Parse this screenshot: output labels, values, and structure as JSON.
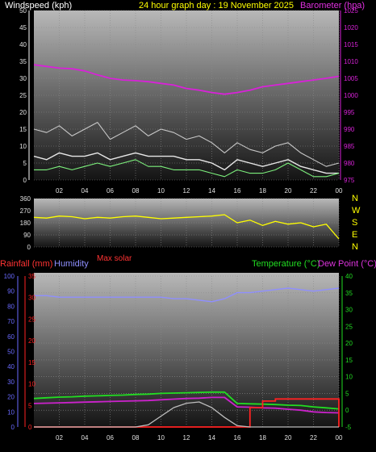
{
  "header": {
    "left_title": "Windspeed (kph)",
    "center_title": "24 hour graph day : 19 November 2025",
    "right_title": "Barometer (hpa)"
  },
  "colors": {
    "background": "#000000",
    "wind_avg": "#e6e6e6",
    "wind_gust": "#c8c8c8",
    "wind_low": "#7cf07c",
    "barometer": "#d822d8",
    "direction": "#ffff00",
    "rainfall": "#ff2222",
    "humidity": "#8f8fff",
    "solar": "#bdbdbd",
    "temperature": "#22dd22",
    "dewpoint": "#cc22cc",
    "axis_left_blue": "#6a6aff"
  },
  "time_ticks": [
    "02",
    "04",
    "06",
    "08",
    "10",
    "12",
    "14",
    "16",
    "18",
    "20",
    "22",
    "00"
  ],
  "chart_data": [
    {
      "id": "wind-barometer",
      "type": "line",
      "ylabel": "Windspeed (kph)",
      "y2label": "Barometer (hpa)",
      "ylim": [
        0,
        50
      ],
      "y2lim": [
        975,
        1025
      ],
      "y_ticks": [
        "0",
        "5",
        "10",
        "15",
        "20",
        "25",
        "30",
        "35",
        "40",
        "45",
        "50"
      ],
      "y2_ticks": [
        "975",
        "980",
        "985",
        "990",
        "995",
        "1000",
        "1005",
        "1010",
        "1015",
        "1020",
        "1025"
      ],
      "x_hours": [
        0,
        1,
        2,
        3,
        4,
        5,
        6,
        7,
        8,
        9,
        10,
        11,
        12,
        13,
        14,
        15,
        16,
        17,
        18,
        19,
        20,
        21,
        22,
        23,
        24
      ],
      "series": [
        {
          "key": "wind_gust",
          "values": [
            15,
            14,
            16,
            13,
            15,
            17,
            12,
            14,
            16,
            13,
            15,
            14,
            12,
            13,
            11,
            8,
            11,
            9,
            8,
            10,
            11,
            8,
            6,
            4,
            5
          ]
        },
        {
          "key": "wind_avg",
          "values": [
            7,
            6,
            8,
            7,
            7,
            8,
            6,
            7,
            8,
            7,
            7,
            7,
            6,
            6,
            5,
            3,
            6,
            5,
            4,
            5,
            6,
            4,
            3,
            2,
            2
          ]
        },
        {
          "key": "wind_low",
          "values": [
            3,
            3,
            4,
            3,
            4,
            5,
            4,
            5,
            6,
            4,
            4,
            3,
            3,
            3,
            2,
            1,
            3,
            2,
            2,
            3,
            5,
            3,
            1,
            1,
            2
          ]
        },
        {
          "key": "barometer",
          "values": [
            1009,
            1008.5,
            1008,
            1007.8,
            1007.2,
            1006,
            1005,
            1004.5,
            1004.3,
            1004,
            1003.5,
            1003,
            1002,
            1001.5,
            1000.8,
            1000.3,
            1000.8,
            1001.5,
            1002.5,
            1003,
            1003.5,
            1004,
            1004.5,
            1005,
            1005.6
          ]
        }
      ]
    },
    {
      "id": "wind-direction",
      "type": "line",
      "ylim": [
        0,
        360
      ],
      "y_ticks": [
        "0",
        "90",
        "180",
        "270",
        "360"
      ],
      "compass_labels": [
        "N",
        "W",
        "S",
        "E",
        "N"
      ],
      "x_hours": [
        0,
        1,
        2,
        3,
        4,
        5,
        6,
        7,
        8,
        9,
        10,
        11,
        12,
        13,
        14,
        15,
        16,
        17,
        18,
        19,
        20,
        21,
        22,
        23,
        24
      ],
      "series": [
        {
          "key": "direction",
          "values": [
            220,
            215,
            230,
            225,
            210,
            220,
            215,
            225,
            230,
            220,
            210,
            215,
            220,
            225,
            230,
            240,
            180,
            200,
            160,
            190,
            170,
            180,
            150,
            170,
            60
          ]
        }
      ]
    },
    {
      "id": "rain-humidity-temp",
      "type": "line",
      "left_titles": [
        "Rainfall (mm)",
        "Humidity"
      ],
      "solar_title": "Max solar",
      "right_titles": [
        "Temperature (°C)",
        "Dew Point (°C)"
      ],
      "humidity_ticks": [
        "0",
        "10",
        "20",
        "30",
        "40",
        "50",
        "60",
        "70",
        "80",
        "90",
        "100"
      ],
      "rain_ticks": [
        "0",
        "5",
        "10",
        "15",
        "20",
        "25",
        "30",
        "35"
      ],
      "temp_ticks": [
        "-5",
        "0",
        "5",
        "10",
        "15",
        "20",
        "25",
        "30",
        "35",
        "40"
      ],
      "ylim_humidity": [
        0,
        100
      ],
      "ylim_rain": [
        0,
        35
      ],
      "ylim_temp": [
        -5,
        40
      ],
      "x_hours": [
        0,
        1,
        2,
        3,
        4,
        5,
        6,
        7,
        8,
        9,
        10,
        11,
        12,
        13,
        14,
        15,
        16,
        17,
        18,
        19,
        20,
        21,
        22,
        23,
        24
      ],
      "series": [
        {
          "key": "humidity",
          "values": [
            87,
            87,
            86,
            86,
            86,
            86,
            86,
            86,
            86,
            86,
            86,
            85,
            85,
            84,
            83,
            85,
            89,
            89,
            90,
            91,
            92,
            91,
            90,
            91,
            92
          ]
        },
        {
          "key": "temperature",
          "values": [
            3.5,
            3.7,
            3.9,
            4,
            4.2,
            4.3,
            4.4,
            4.5,
            4.7,
            4.8,
            5,
            5.1,
            5.2,
            5.3,
            5.4,
            5.4,
            2,
            1.9,
            1.8,
            1.7,
            1.5,
            1.4,
            1,
            0.7,
            0.4
          ]
        },
        {
          "key": "dewpoint",
          "values": [
            2,
            2.1,
            2.2,
            2.3,
            2.4,
            2.5,
            2.6,
            2.7,
            2.8,
            2.9,
            3.1,
            3.3,
            3.5,
            3.6,
            3.8,
            3.8,
            1,
            0.9,
            0.7,
            0.6,
            0.3,
            0,
            -0.5,
            -0.7,
            -0.8
          ]
        },
        {
          "key": "rainfall",
          "values": [
            0,
            0,
            0,
            0,
            0,
            0,
            0,
            0,
            0,
            0,
            0,
            0,
            0,
            0,
            0,
            0,
            0,
            4.5,
            6,
            6.5,
            6.5,
            6.5,
            6.5,
            6.5,
            0
          ]
        },
        {
          "key": "solar",
          "values": [
            0,
            0,
            0,
            0,
            0,
            0,
            0,
            0,
            0,
            0.5,
            2.5,
            4.5,
            5.5,
            5.8,
            4.5,
            2.2,
            0.3,
            0,
            0,
            0,
            0,
            0,
            0,
            0,
            0
          ]
        }
      ]
    }
  ]
}
